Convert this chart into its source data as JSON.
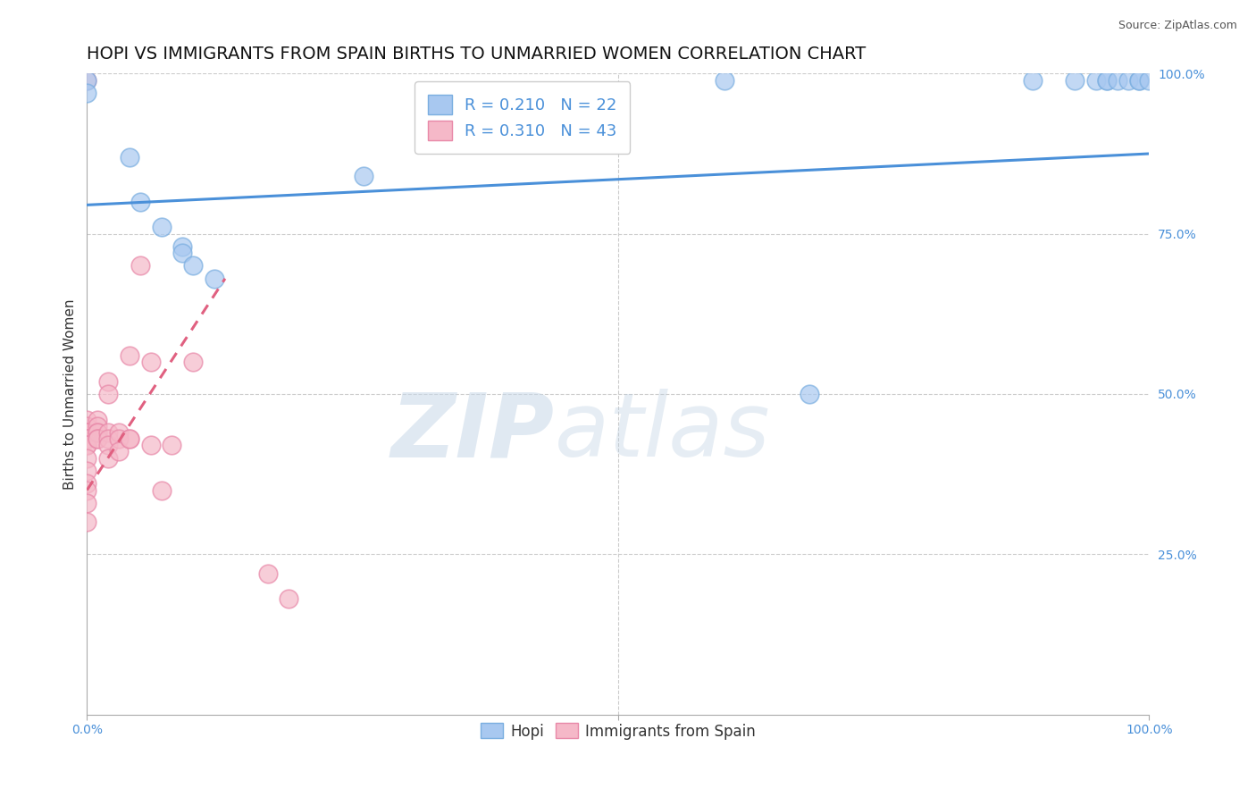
{
  "title": "HOPI VS IMMIGRANTS FROM SPAIN BIRTHS TO UNMARRIED WOMEN CORRELATION CHART",
  "source": "Source: ZipAtlas.com",
  "ylabel": "Births to Unmarried Women",
  "xlim": [
    0.0,
    1.0
  ],
  "ylim": [
    0.0,
    1.0
  ],
  "hopi_color": "#a8c8f0",
  "hopi_edge_color": "#7aaee0",
  "spain_color": "#f5b8c8",
  "spain_edge_color": "#e888a8",
  "hopi_R": 0.21,
  "hopi_N": 22,
  "spain_R": 0.31,
  "spain_N": 43,
  "hopi_trend_start_x": 0.0,
  "hopi_trend_start_y": 0.795,
  "hopi_trend_end_x": 1.0,
  "hopi_trend_end_y": 0.875,
  "spain_trend_start_x": 0.0,
  "spain_trend_start_y": 0.35,
  "spain_trend_end_x": 0.13,
  "spain_trend_end_y": 0.68,
  "hopi_scatter_x": [
    0.0,
    0.0,
    0.04,
    0.05,
    0.07,
    0.09,
    0.09,
    0.1,
    0.12,
    0.26,
    0.6,
    0.68,
    0.89,
    0.93,
    0.95,
    0.96,
    0.96,
    0.97,
    0.98,
    0.99,
    0.99,
    1.0
  ],
  "hopi_scatter_y": [
    0.99,
    0.97,
    0.87,
    0.8,
    0.76,
    0.73,
    0.72,
    0.7,
    0.68,
    0.84,
    0.99,
    0.5,
    0.99,
    0.99,
    0.99,
    0.99,
    0.99,
    0.99,
    0.99,
    0.99,
    0.99,
    0.99
  ],
  "spain_scatter_x": [
    0.0,
    0.0,
    0.0,
    0.0,
    0.0,
    0.0,
    0.0,
    0.0,
    0.0,
    0.0,
    0.0,
    0.0,
    0.0,
    0.0,
    0.0,
    0.0,
    0.0,
    0.01,
    0.01,
    0.01,
    0.01,
    0.01,
    0.01,
    0.02,
    0.02,
    0.02,
    0.02,
    0.02,
    0.02,
    0.03,
    0.03,
    0.03,
    0.04,
    0.04,
    0.04,
    0.05,
    0.06,
    0.06,
    0.07,
    0.08,
    0.1,
    0.17,
    0.19
  ],
  "spain_scatter_y": [
    0.99,
    0.46,
    0.45,
    0.44,
    0.44,
    0.44,
    0.43,
    0.43,
    0.43,
    0.42,
    0.42,
    0.4,
    0.38,
    0.36,
    0.35,
    0.33,
    0.3,
    0.46,
    0.45,
    0.44,
    0.44,
    0.43,
    0.43,
    0.52,
    0.5,
    0.44,
    0.43,
    0.42,
    0.4,
    0.44,
    0.43,
    0.41,
    0.56,
    0.43,
    0.43,
    0.7,
    0.55,
    0.42,
    0.35,
    0.42,
    0.55,
    0.22,
    0.18
  ],
  "watermark_zip": "ZIP",
  "watermark_atlas": "atlas",
  "grid_color": "#cccccc",
  "bg_color": "#ffffff",
  "tick_color": "#4A90D9",
  "title_fontsize": 14,
  "axis_label_fontsize": 11,
  "tick_fontsize": 10,
  "legend_fontsize": 13
}
